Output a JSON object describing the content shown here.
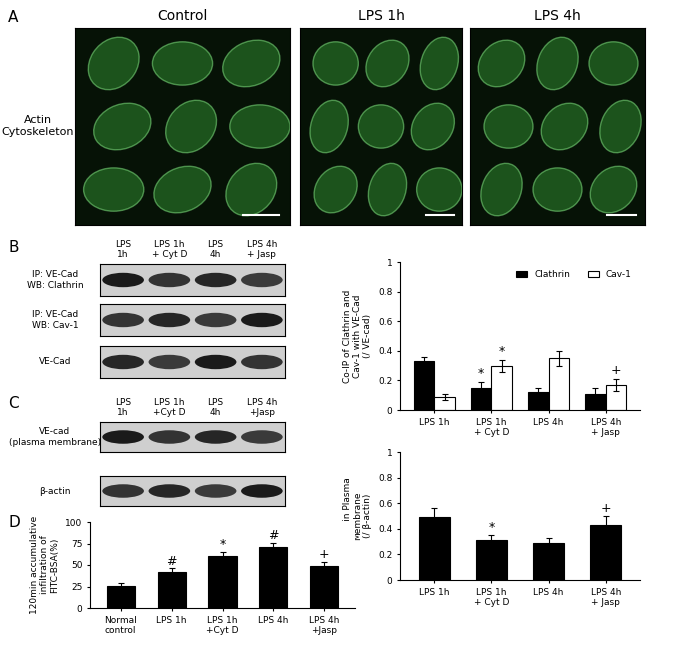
{
  "panel_labels": [
    "A",
    "B",
    "C",
    "D"
  ],
  "panel_a": {
    "columns": [
      "Control",
      "LPS 1h",
      "LPS 4h"
    ],
    "row_label": "Actin\nCytoskeleton"
  },
  "blots_b": {
    "lanes": [
      "LPS\n1h",
      "LPS 1h\n+ Cyt D",
      "LPS\n4h",
      "LPS 4h\n+ Jasp"
    ],
    "rows": [
      "IP: VE-Cad\nWB: Clathrin",
      "IP: VE-Cad\nWB: Cav-1",
      "VE-Cad"
    ]
  },
  "blots_c": {
    "lanes": [
      "LPS\n1h",
      "LPS 1h\n+Cyt D",
      "LPS\n4h",
      "LPS 4h\n+Jasp"
    ],
    "rows": [
      "VE-cad\n(plasma membrane)",
      "β-actin"
    ]
  },
  "chart_data": [
    {
      "type": "bar",
      "y_label": "Co-IP of Clathrin and\nCav-1 with VE-Cad\n(/ VE-cad)",
      "categories": [
        "LPS 1h",
        "LPS 1h\n+ Cyt D",
        "LPS 4h",
        "LPS 4h\n+ Jasp"
      ],
      "series": [
        {
          "name": "Clathrin",
          "color": "#000000",
          "values": [
            0.33,
            0.15,
            0.12,
            0.11
          ],
          "errors": [
            0.03,
            0.04,
            0.03,
            0.04
          ]
        },
        {
          "name": "Cav-1",
          "color": "#ffffff",
          "values": [
            0.09,
            0.3,
            0.35,
            0.17
          ],
          "errors": [
            0.02,
            0.04,
            0.05,
            0.04
          ]
        }
      ],
      "ylim": [
        0,
        1
      ],
      "yticks": [
        0,
        0.2,
        0.4,
        0.6,
        0.8,
        1
      ],
      "legend": "upper right",
      "annotations": [
        {
          "series": "Clathrin",
          "category": "LPS 1h\n+ Cyt D",
          "text": "*"
        },
        {
          "series": "Cav-1",
          "category": "LPS 1h\n+ Cyt D",
          "text": "*"
        },
        {
          "series": "Cav-1",
          "category": "LPS 4h\n+ Jasp",
          "text": "+"
        }
      ]
    },
    {
      "type": "bar",
      "y_label": "VE-cad in Plasma\nMembrane\n(/ β-actin)",
      "categories": [
        "LPS 1h",
        "LPS 1h\n+ Cyt D",
        "LPS 4h",
        "LPS 4h\n+ Jasp"
      ],
      "values": [
        0.49,
        0.31,
        0.29,
        0.43
      ],
      "errors": [
        0.07,
        0.04,
        0.04,
        0.07
      ],
      "color": "#000000",
      "ylim": [
        0,
        1
      ],
      "yticks": [
        0,
        0.2,
        0.4,
        0.6,
        0.8,
        1
      ],
      "annotations": [
        {
          "category": "LPS 1h\n+ Cyt D",
          "text": "*"
        },
        {
          "category": "LPS 4h\n+ Jasp",
          "text": "+"
        }
      ]
    },
    {
      "type": "bar",
      "y_label": "120min accumulative\ninfiltration of\nFITC-BSA(%)",
      "categories": [
        "Normal\ncontrol",
        "LPS 1h",
        "LPS 1h\n+Cyt D",
        "LPS 4h",
        "LPS 4h\n+Jasp"
      ],
      "values": [
        26,
        42,
        61,
        71,
        49
      ],
      "errors": [
        3,
        4,
        4,
        5,
        5
      ],
      "color": "#000000",
      "ylim": [
        0,
        100
      ],
      "yticks": [
        0,
        25,
        50,
        75,
        100
      ],
      "annotations": [
        {
          "category": "LPS 1h",
          "text": "#"
        },
        {
          "category": "LPS 1h\n+Cyt D",
          "text": "*"
        },
        {
          "category": "LPS 4h",
          "text": "#"
        },
        {
          "category": "LPS 4h\n+Jasp",
          "text": "+"
        }
      ]
    }
  ]
}
